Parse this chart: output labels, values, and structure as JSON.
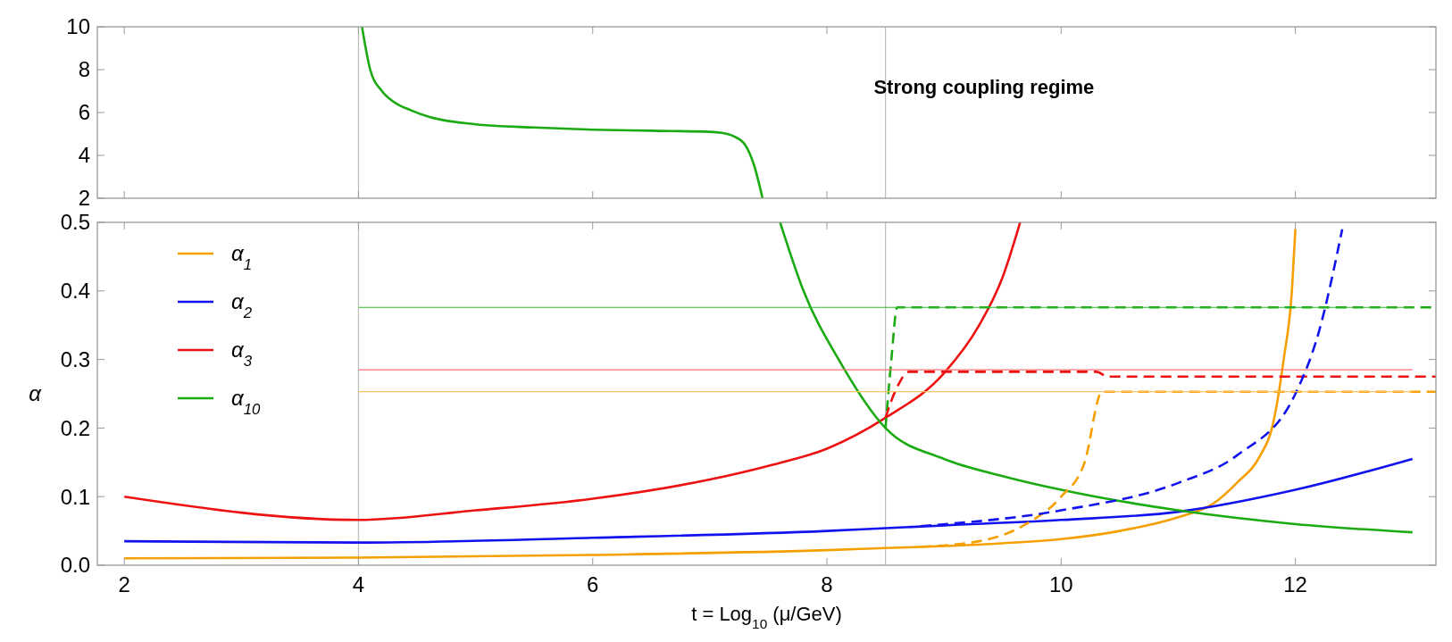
{
  "chart_data": [
    {
      "type": "line",
      "annotations": [
        "Strong coupling regime"
      ],
      "xlim": [
        1.77,
        13.2
      ],
      "xticks": [
        2,
        4,
        6,
        8,
        10,
        12
      ],
      "ylim": [
        2,
        10
      ],
      "yticks": [
        2,
        4,
        6,
        8,
        10
      ],
      "tick_labels": "y",
      "grid": false,
      "legend": false,
      "ref_lines": [
        {
          "axis": "x",
          "value": 4,
          "color": "#c0c0c0"
        },
        {
          "axis": "x",
          "value": 8.5,
          "color": "#c0c0c0"
        }
      ],
      "series": [
        {
          "color": "#1aaa11",
          "x": [
            4.03,
            4.1,
            4.2,
            4.3,
            4.45,
            4.6,
            5,
            5.5,
            6,
            6.5,
            7,
            7.1,
            7.2,
            7.3,
            7.38,
            7.45
          ],
          "values": [
            10,
            8,
            7,
            6.5,
            6.1,
            5.8,
            5.45,
            5.3,
            5.2,
            5.15,
            5.1,
            5.05,
            4.9,
            4.5,
            3.5,
            2
          ]
        }
      ]
    },
    {
      "type": "line",
      "xlabel": "t = Log$_{10}$ (μ/GeV)",
      "ylabel": "α",
      "xlim": [
        1.77,
        13.2
      ],
      "xticks": [
        2,
        4,
        6,
        8,
        10,
        12
      ],
      "ylim": [
        0,
        0.5
      ],
      "yticks": [
        {
          "value": 0,
          "label": "0.0"
        },
        0.1,
        0.2,
        0.3,
        0.4,
        0.5
      ],
      "grid": false,
      "legend": "top left",
      "ref_lines": [
        {
          "axis": "x",
          "value": 4,
          "color": "#c0c0c0"
        },
        {
          "axis": "x",
          "value": 8.5,
          "color": "#c0c0c0"
        }
      ],
      "series": [
        {
          "name": "α$_{1}$",
          "color": "#f59f00",
          "x": [
            2,
            4,
            6,
            8,
            8.5,
            9,
            9.5,
            10,
            10.5,
            11,
            11.3,
            11.5,
            11.7,
            11.8,
            11.9,
            11.97,
            12
          ],
          "values": [
            0.01,
            0.011,
            0.015,
            0.022,
            0.025,
            0.028,
            0.032,
            0.038,
            0.05,
            0.07,
            0.09,
            0.12,
            0.16,
            0.2,
            0.3,
            0.4,
            0.49
          ]
        },
        {
          "name": "α$_{2}$",
          "color": "#1212ee",
          "x": [
            2,
            4,
            6,
            8,
            8.5,
            9,
            10,
            11,
            12,
            13
          ],
          "values": [
            0.035,
            0.033,
            0.04,
            0.05,
            0.054,
            0.058,
            0.066,
            0.078,
            0.11,
            0.155
          ]
        },
        {
          "name": "α$_{3}$",
          "color": "#ee1111",
          "x": [
            2,
            4,
            5,
            6,
            7,
            7.5,
            8,
            8.5,
            9,
            9.3,
            9.5,
            9.65
          ],
          "values": [
            0.1,
            0.066,
            0.08,
            0.097,
            0.125,
            0.145,
            0.17,
            0.215,
            0.28,
            0.35,
            0.42,
            0.5
          ]
        },
        {
          "name": "α$_{10}$",
          "color": "#1aaa11",
          "x": [
            7.6,
            7.8,
            8.1,
            8.5,
            9,
            9.5,
            10,
            11,
            12,
            13
          ],
          "values": [
            0.5,
            0.4,
            0.3,
            0.2,
            0.155,
            0.13,
            0.11,
            0.08,
            0.06,
            0.048
          ]
        },
        {
          "color": "#1aaa11",
          "line_style": "dashed",
          "x": [
            8.5,
            8.55,
            8.6,
            13.2
          ],
          "values": [
            0.2,
            0.3,
            0.376,
            0.376
          ]
        },
        {
          "color": "#ee1111",
          "line_style": "dashed",
          "x": [
            8.5,
            8.6,
            8.7,
            10.3,
            10.4,
            13.2
          ],
          "values": [
            0.215,
            0.26,
            0.282,
            0.282,
            0.275,
            0.275
          ]
        },
        {
          "color": "#f59f00",
          "line_style": "dashed",
          "x": [
            8.8,
            9.3,
            9.7,
            10,
            10.2,
            10.35,
            13.2
          ],
          "values": [
            0.027,
            0.035,
            0.06,
            0.1,
            0.15,
            0.253,
            0.253
          ]
        },
        {
          "color": "#1212ee",
          "line_style": "dashed",
          "x": [
            8.8,
            10,
            11,
            11.5,
            12,
            12.2,
            12.4
          ],
          "values": [
            0.057,
            0.08,
            0.12,
            0.16,
            0.25,
            0.34,
            0.49
          ]
        },
        {
          "color": "#2db82d",
          "x": [
            4,
            13
          ],
          "values": [
            0.376,
            0.376
          ]
        },
        {
          "color": "#ff7070",
          "x": [
            4,
            13
          ],
          "values": [
            0.285,
            0.285
          ]
        },
        {
          "color": "#ffc060",
          "x": [
            4,
            13
          ],
          "values": [
            0.253,
            0.253
          ]
        }
      ]
    }
  ]
}
